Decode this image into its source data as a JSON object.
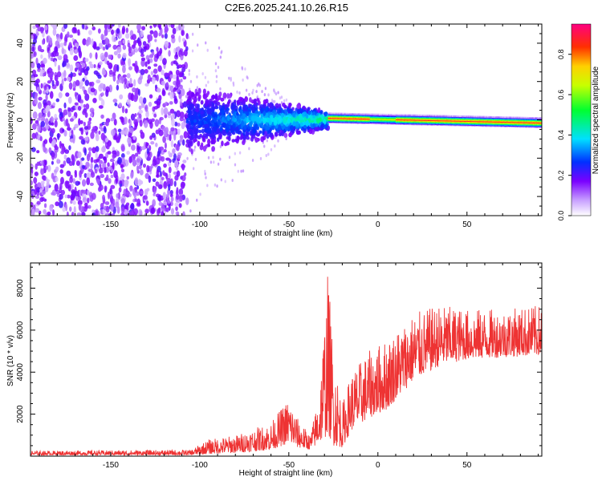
{
  "page_title": "C2E6.2025.241.10.26.R15",
  "chart_data": [
    {
      "type": "heatmap",
      "title": "C2E6.2025.241.10.26.R15",
      "xlabel": "Height of straight line (km)",
      "ylabel": "Frequency (Hz)",
      "xlim": [
        -195,
        92
      ],
      "ylim": [
        -50,
        50
      ],
      "xticks": [
        -150,
        -100,
        -50,
        0,
        50
      ],
      "yticks": [
        -40,
        -20,
        0,
        20,
        40
      ],
      "colorbar": {
        "label": "Normalized spectral amplitude",
        "range": [
          0,
          0.95
        ],
        "ticks": [
          0.0,
          0.2,
          0.4,
          0.6,
          0.8
        ]
      },
      "description_regions": [
        {
          "x_range": [
            -195,
            -107
          ],
          "freq_spread": 50,
          "intensity": 0.25
        },
        {
          "x_range": [
            -107,
            -28
          ],
          "freq_spread_start": 18,
          "freq_spread_end": 5,
          "intensity_start": 0.2,
          "intensity_end": 0.35
        },
        {
          "x_range": [
            -28,
            92
          ],
          "freq_center_start": 1,
          "freq_center_end": -1.5,
          "band_halfwidth": 2,
          "peak_intensity": 0.95
        }
      ]
    },
    {
      "type": "line",
      "xlabel": "Height of straight line (km)",
      "ylabel": "SNR (10 * v/v)",
      "xlim": [
        -195,
        92
      ],
      "ylim": [
        0,
        9200
      ],
      "xticks": [
        -150,
        -100,
        -50,
        0,
        50
      ],
      "yticks": [
        2000,
        4000,
        6000,
        8000
      ],
      "series": [
        {
          "name": "SNR",
          "color": "#ee3333",
          "envelope": [
            {
              "x": -195,
              "lo": 50,
              "hi": 250
            },
            {
              "x": -105,
              "lo": 50,
              "hi": 300
            },
            {
              "x": -95,
              "lo": 100,
              "hi": 800
            },
            {
              "x": -80,
              "lo": 150,
              "hi": 1000
            },
            {
              "x": -60,
              "lo": 300,
              "hi": 1600
            },
            {
              "x": -50,
              "lo": 600,
              "hi": 2800
            },
            {
              "x": -45,
              "lo": 400,
              "hi": 1800
            },
            {
              "x": -38,
              "lo": 300,
              "hi": 1000
            },
            {
              "x": -33,
              "lo": 600,
              "hi": 3000
            },
            {
              "x": -28,
              "lo": 1000,
              "hi": 9000
            },
            {
              "x": -25,
              "lo": 500,
              "hi": 5000
            },
            {
              "x": -20,
              "lo": 400,
              "hi": 2500
            },
            {
              "x": -15,
              "lo": 1200,
              "hi": 4000
            },
            {
              "x": -5,
              "lo": 1800,
              "hi": 5000
            },
            {
              "x": 5,
              "lo": 2200,
              "hi": 5600
            },
            {
              "x": 20,
              "lo": 3600,
              "hi": 6800
            },
            {
              "x": 35,
              "lo": 4300,
              "hi": 7200
            },
            {
              "x": 50,
              "lo": 4600,
              "hi": 7000
            },
            {
              "x": 70,
              "lo": 4700,
              "hi": 7000
            },
            {
              "x": 92,
              "lo": 4800,
              "hi": 7200
            }
          ]
        }
      ]
    }
  ]
}
